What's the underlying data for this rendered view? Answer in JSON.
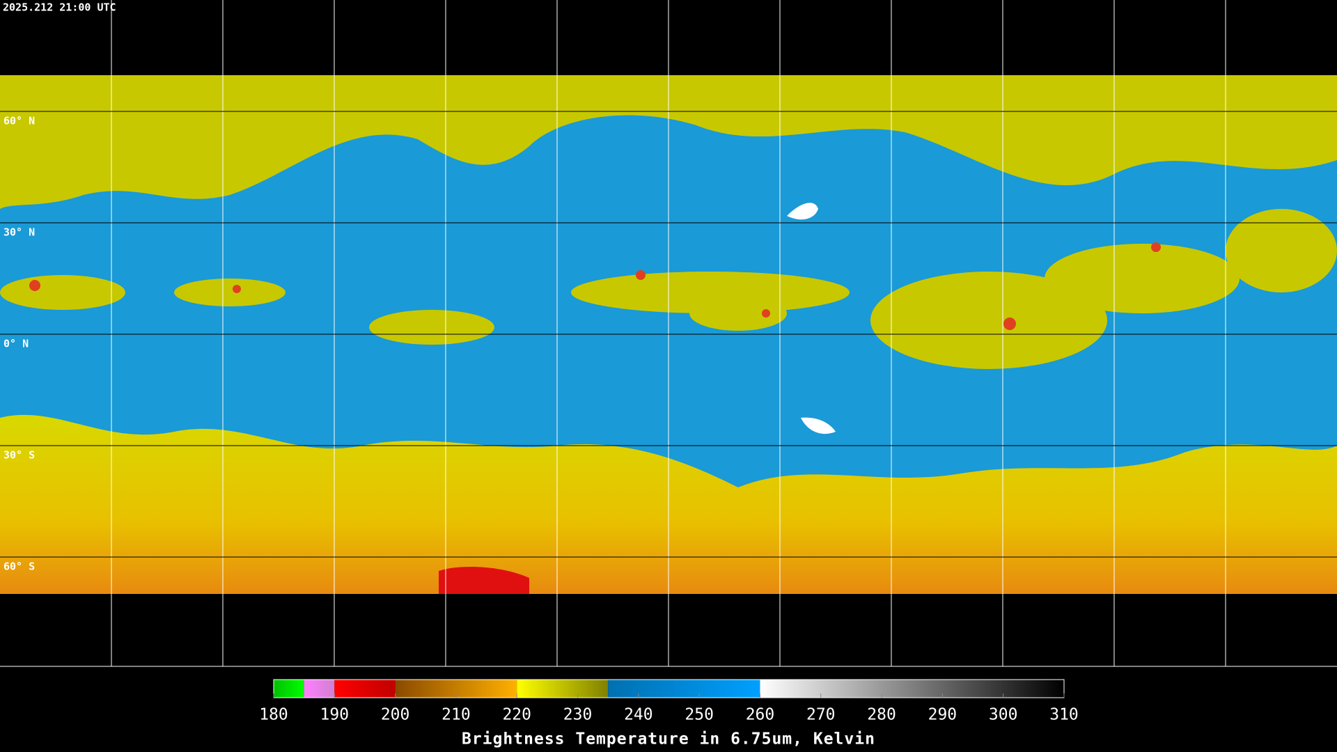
{
  "timestamp": "2025.212 21:00 UTC",
  "latitude_labels": [
    "60° N",
    "30° N",
    "0° N",
    "30° S",
    "60° S"
  ],
  "colorbar": {
    "title": "Brightness Temperature in 6.75um, Kelvin",
    "range": [
      180,
      310
    ],
    "ticks": [
      180,
      190,
      200,
      210,
      220,
      230,
      240,
      250,
      260,
      270,
      280,
      290,
      300,
      310
    ],
    "segments": [
      {
        "from": 180,
        "to": 185,
        "colors": [
          "#00c000",
          "#00ff00"
        ]
      },
      {
        "from": 185,
        "to": 190,
        "colors": [
          "#ff80ff",
          "#d080d0"
        ]
      },
      {
        "from": 190,
        "to": 200,
        "colors": [
          "#ff0000",
          "#c00000"
        ]
      },
      {
        "from": 200,
        "to": 220,
        "colors": [
          "#8a4a00",
          "#ffb000"
        ]
      },
      {
        "from": 220,
        "to": 235,
        "colors": [
          "#ffff00",
          "#808000"
        ]
      },
      {
        "from": 235,
        "to": 260,
        "colors": [
          "#0070b0",
          "#00a0ff"
        ]
      },
      {
        "from": 260,
        "to": 310,
        "colors": [
          "#ffffff",
          "#000000"
        ]
      }
    ]
  }
}
